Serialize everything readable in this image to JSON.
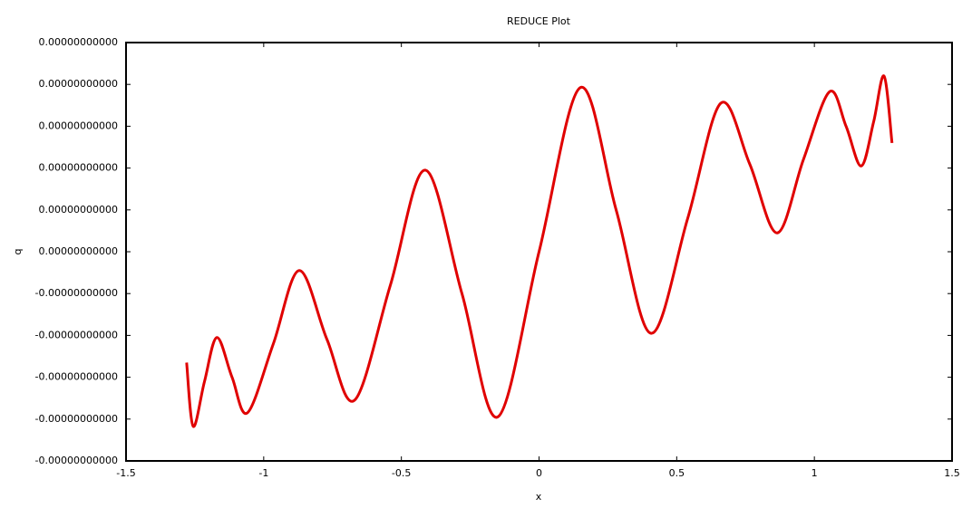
{
  "chart_data": {
    "type": "line",
    "title": "REDUCE Plot",
    "x_label": "x",
    "y_label": "q",
    "x": [
      -1.28,
      -1.256,
      -1.215,
      -1.17,
      -1.115,
      -1.059,
      -0.965,
      -0.871,
      -0.77,
      -0.67,
      -0.54,
      -0.413,
      -0.28,
      -0.15,
      0.0,
      0.15,
      0.28,
      0.407,
      0.54,
      0.66,
      0.765,
      0.865,
      0.96,
      1.055,
      1.115,
      1.17,
      1.215,
      1.253,
      1.282
    ],
    "values": [
      -1.06e-12,
      -1.67e-12,
      -1.24e-12,
      -8.2e-13,
      -1.2e-12,
      -1.54e-12,
      -8.8e-13,
      -1.8e-13,
      -8.4e-13,
      -1.42e-12,
      -3.2e-13,
      7.8e-13,
      -4e-13,
      -1.58e-12,
      0,
      1.57e-12,
      4e-13,
      -7.8e-13,
      3.2e-13,
      1.42e-12,
      8.4e-13,
      1.8e-13,
      8.8e-13,
      1.53e-12,
      1.2e-12,
      8.2e-13,
      1.24e-12,
      1.68e-12,
      1.04e-12
    ],
    "color": "#e00000",
    "xlim": [
      -1.5,
      1.5
    ],
    "xticks": [
      -1.5,
      -1,
      -0.5,
      0,
      0.5,
      1,
      1.5
    ],
    "ylim": [
      -2e-12,
      2e-12
    ],
    "yticks": [
      {
        "value": -2e-12,
        "label": "-0.00000000000"
      },
      {
        "value": -1.6e-12,
        "label": "-0.00000000000"
      },
      {
        "value": -1.2e-12,
        "label": "-0.00000000000"
      },
      {
        "value": -8e-13,
        "label": "-0.00000000000"
      },
      {
        "value": -4e-13,
        "label": "-0.00000000000"
      },
      {
        "value": 0,
        "label": "0.00000000000"
      },
      {
        "value": 4e-13,
        "label": "0.00000000000"
      },
      {
        "value": 8e-13,
        "label": "0.00000000000"
      },
      {
        "value": 1.2e-12,
        "label": "0.00000000000"
      },
      {
        "value": 1.6e-12,
        "label": "0.00000000000"
      },
      {
        "value": 2e-12,
        "label": "0.00000000000"
      }
    ],
    "grid": false
  }
}
